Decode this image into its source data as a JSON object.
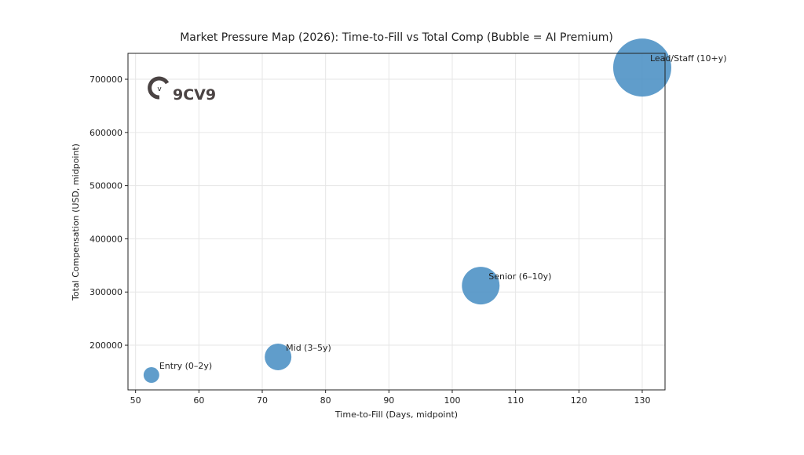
{
  "chart_data": {
    "type": "scatter",
    "title": "Market Pressure Map (2026): Time-to-Fill vs Total Comp (Bubble = AI Premium)",
    "xlabel": "Time-to-Fill (Days, midpoint)",
    "ylabel": "Total Compensation (USD, midpoint)",
    "xlim": [
      48.8,
      133.6
    ],
    "ylim": [
      116000,
      748700
    ],
    "xticks": [
      50,
      60,
      70,
      80,
      90,
      100,
      110,
      120,
      130
    ],
    "yticks": [
      200000,
      300000,
      400000,
      500000,
      600000,
      700000
    ],
    "grid": true,
    "color": "#4a90c4",
    "points": [
      {
        "label": "Entry (0–2y)",
        "x": 52.5,
        "y": 144000,
        "bubble_size_relative": 100
      },
      {
        "label": "Mid (3–5y)",
        "x": 72.5,
        "y": 178000,
        "bubble_size_relative": 289
      },
      {
        "label": "Senior (6–10y)",
        "x": 104.5,
        "y": 312000,
        "bubble_size_relative": 576
      },
      {
        "label": "Lead/Staff (10+y)",
        "x": 130,
        "y": 722000,
        "bubble_size_relative": 1369
      }
    ]
  },
  "logo": {
    "text": "9CV9"
  }
}
